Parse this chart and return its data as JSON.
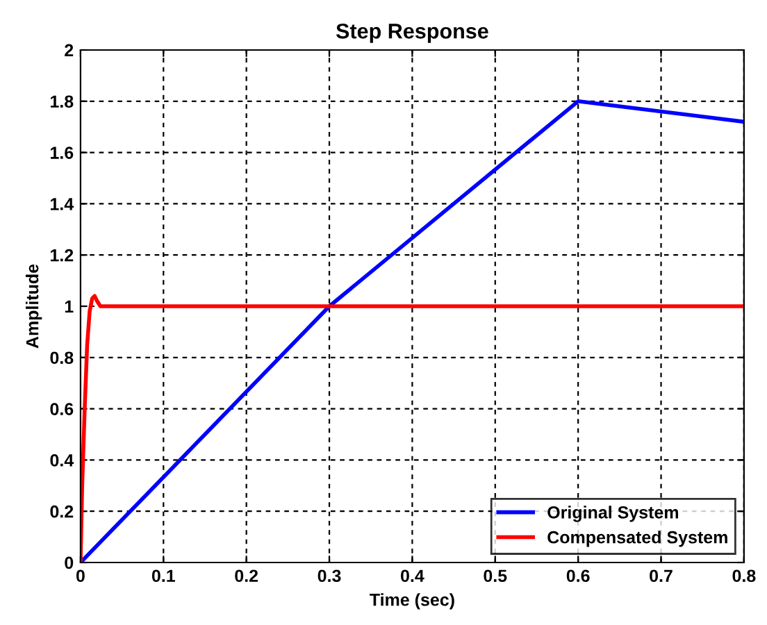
{
  "chart_data": {
    "type": "line",
    "title": "Step Response",
    "xlabel": "Time (sec)",
    "ylabel": "Amplitude",
    "xlim": [
      0,
      0.8
    ],
    "ylim": [
      0,
      2
    ],
    "xticks": [
      0,
      0.1,
      0.2,
      0.3,
      0.4,
      0.5,
      0.6,
      0.7,
      0.8
    ],
    "yticks": [
      0,
      0.2,
      0.4,
      0.6,
      0.8,
      1,
      1.2,
      1.4,
      1.6,
      1.8,
      2
    ],
    "grid": true,
    "legend": "bottom right",
    "line_style": "solid",
    "series": [
      {
        "name": "Original System",
        "color": "#0000ff",
        "x": [
          0,
          0.3,
          0.6,
          0.8
        ],
        "values": [
          0,
          1.0,
          1.8,
          1.72
        ]
      },
      {
        "name": "Compensated System",
        "color": "#ff0000",
        "x": [
          0,
          0.002,
          0.005,
          0.008,
          0.011,
          0.014,
          0.017,
          0.02,
          0.024,
          0.8
        ],
        "values": [
          0,
          0.3,
          0.6,
          0.85,
          0.98,
          1.03,
          1.04,
          1.02,
          1.0,
          1.0
        ]
      }
    ]
  }
}
